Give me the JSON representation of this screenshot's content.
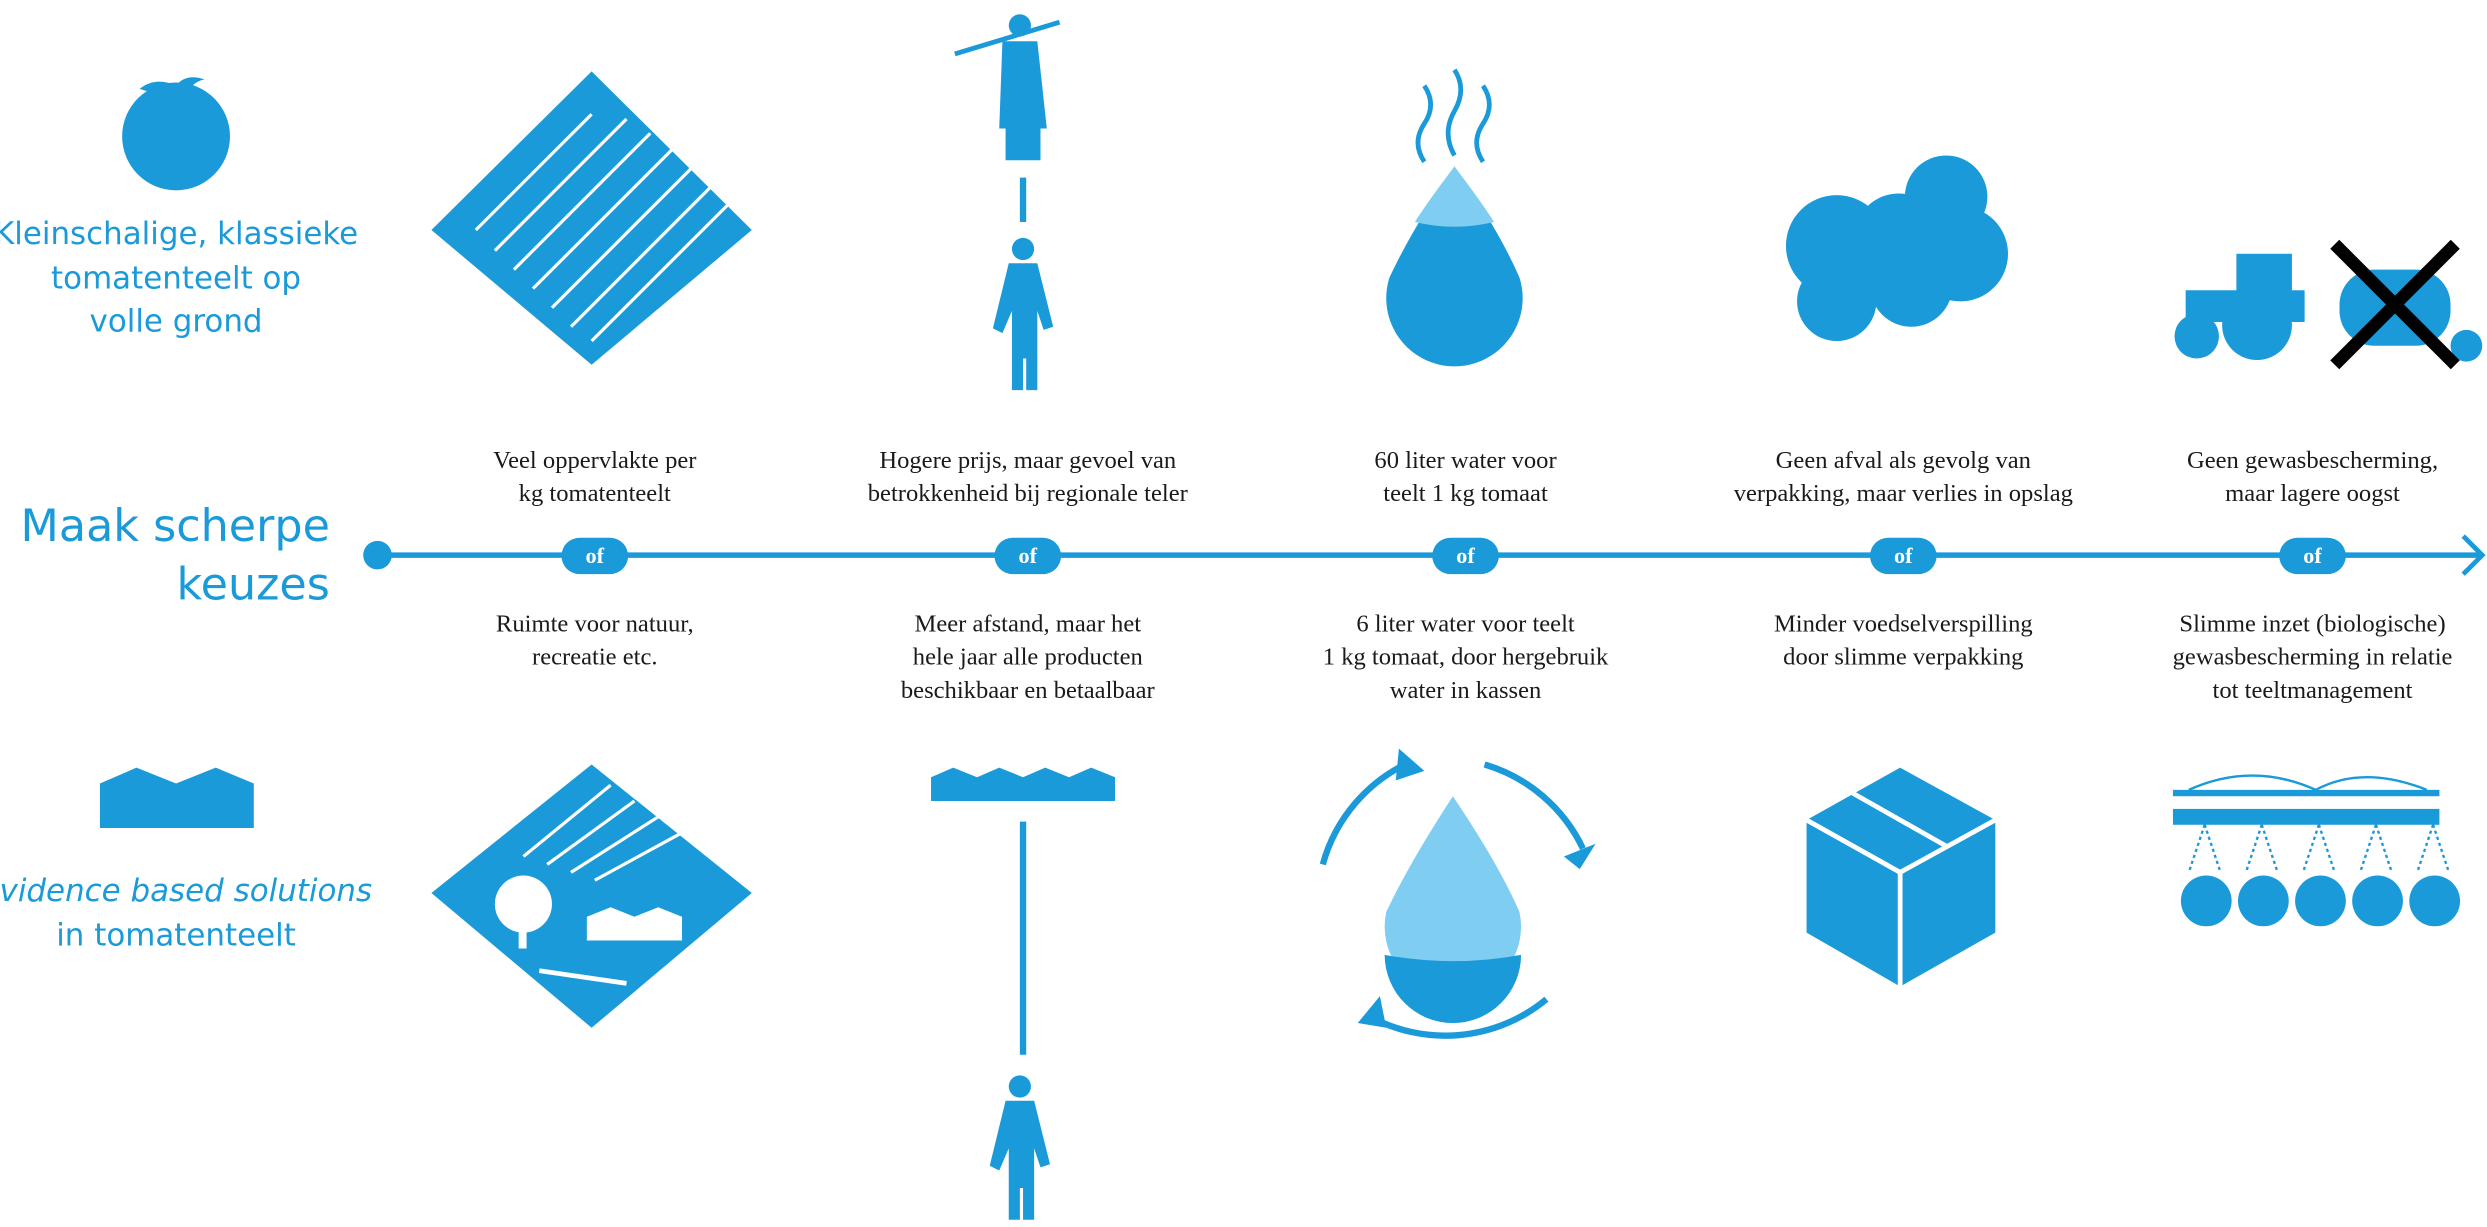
{
  "top_label": [
    "Kleinschalige, klassieke",
    "tomatenteelt op",
    "volle grond"
  ],
  "bottom_label": {
    "emphasis": "Evidence based solutions",
    "text": "in tomatenteelt"
  },
  "title": [
    "Maak scherpe",
    "keuzes"
  ],
  "choices": [
    {
      "top": [
        "Veel oppervlakte per",
        "kg tomatenteelt"
      ],
      "connector": "of",
      "bottom": [
        "Ruimte voor natuur,",
        "recreatie etc."
      ]
    },
    {
      "top": [
        "Hogere prijs, maar gevoel van",
        "betrokkenheid bij regionale teler"
      ],
      "connector": "of",
      "bottom": [
        "Meer afstand, maar het",
        "hele jaar alle producten",
        "beschikbaar en betaalbaar"
      ]
    },
    {
      "top": [
        "60 liter water voor",
        "teelt 1 kg tomaat"
      ],
      "connector": "of",
      "bottom": [
        "6 liter water voor teelt",
        "1 kg tomaat, door hergebruik",
        "water in kassen"
      ]
    },
    {
      "top": [
        "Geen afval als gevolg van",
        "verpakking, maar verlies in opslag"
      ],
      "connector": "of",
      "bottom": [
        "Minder voedselverspilling",
        "door slimme verpakking"
      ]
    },
    {
      "top": [
        "Geen gewasbescherming,",
        "maar lagere oogst"
      ],
      "connector": "of",
      "bottom": [
        "Slimme inzet (biologische)",
        "gewasbescherming in relatie",
        "tot teeltmanagement"
      ]
    }
  ]
}
